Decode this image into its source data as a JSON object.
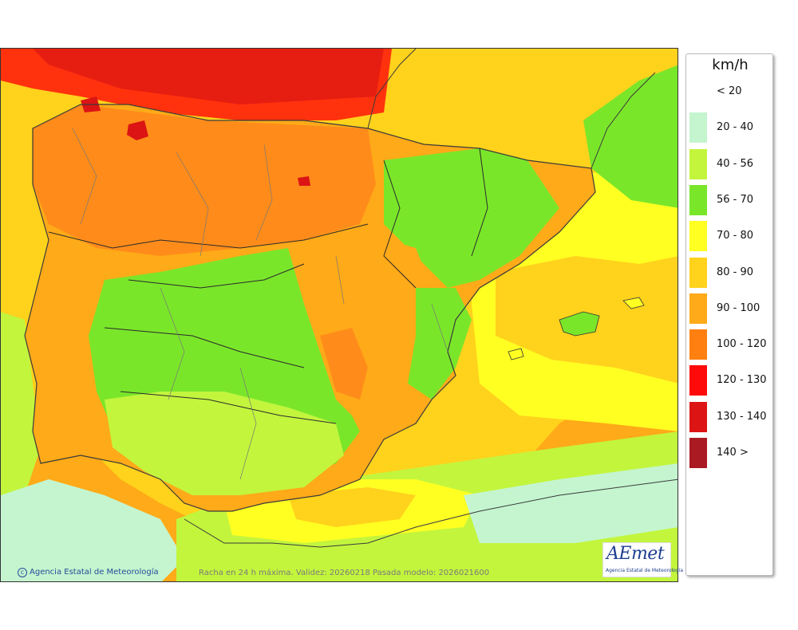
{
  "legend": {
    "unit": "km/h",
    "classes": [
      {
        "label": "< 20",
        "color": "#ffffff"
      },
      {
        "label": "20 - 40",
        "color": "#c4f5cf"
      },
      {
        "label": "40 - 56",
        "color": "#c3f53d"
      },
      {
        "label": "56 - 70",
        "color": "#7ae62a"
      },
      {
        "label": "70 - 80",
        "color": "#ffff22"
      },
      {
        "label": "80 - 90",
        "color": "#ffd21c"
      },
      {
        "label": "90 - 100",
        "color": "#ffaa18"
      },
      {
        "label": "100 - 120",
        "color": "#ff8010"
      },
      {
        "label": "120 - 130",
        "color": "#ff0a0a"
      },
      {
        "label": "130 - 140",
        "color": "#dc1414"
      },
      {
        "label": "140 >",
        "color": "#aa1a22"
      }
    ]
  },
  "footer": {
    "copyright": "Agencia Estatal de Meteorología",
    "caption": "Racha en 24 h máxima. Validez: 20260218 Pasada modelo: 2026021600"
  },
  "logo": {
    "word": "AEmet",
    "subtitle": "Agencia Estatal de Meteorología"
  },
  "icons": {
    "copyright": "copyright-icon",
    "logo": "aemet-logo-icon"
  }
}
